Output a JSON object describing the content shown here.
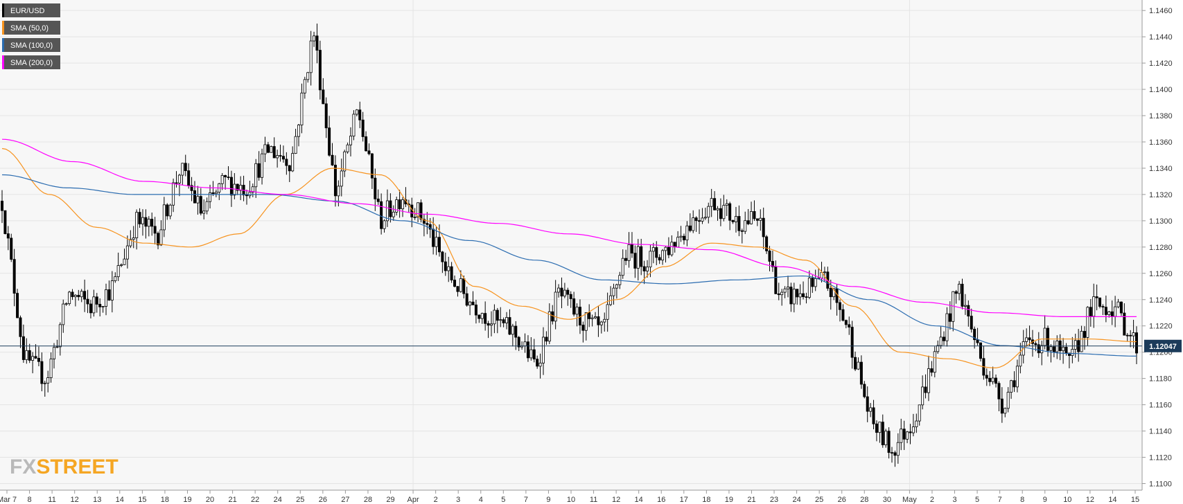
{
  "chart_data": {
    "type": "candlestick",
    "title": "",
    "xlabel": "",
    "ylabel": "",
    "ylim": [
      1.1095,
      1.1468
    ],
    "y_ticks": [
      "1.1100",
      "1.1120",
      "1.1140",
      "1.1160",
      "1.1180",
      "1.1200",
      "1.1220",
      "1.1240",
      "1.1260",
      "1.1280",
      "1.1300",
      "1.1320",
      "1.1340",
      "1.1360",
      "1.1380",
      "1.1400",
      "1.1420",
      "1.1440",
      "1.1460"
    ],
    "x_tick_labels": [
      "Mar 7",
      "8",
      "11",
      "12",
      "13",
      "14",
      "15",
      "18",
      "19",
      "20",
      "21",
      "22",
      "24",
      "25",
      "26",
      "27",
      "28",
      "29",
      "Apr",
      "2",
      "3",
      "4",
      "5",
      "7",
      "9",
      "10",
      "11",
      "12",
      "14",
      "16",
      "17",
      "18",
      "19",
      "21",
      "23",
      "24",
      "25",
      "26",
      "28",
      "30",
      "May",
      "2",
      "3",
      "5",
      "7",
      "8",
      "9",
      "10",
      "12",
      "14",
      "15"
    ],
    "series": [
      {
        "name": "EUR/USD",
        "kind": "candles",
        "color_up": "#ffffff",
        "color_down": "#000000",
        "anchors": [
          1.1315,
          1.1195,
          1.118,
          1.1245,
          1.1235,
          1.125,
          1.13,
          1.129,
          1.134,
          1.1305,
          1.133,
          1.1325,
          1.1355,
          1.1345,
          1.1445,
          1.132,
          1.1385,
          1.13,
          1.132,
          1.13,
          1.126,
          1.124,
          1.1225,
          1.1215,
          1.119,
          1.1245,
          1.1225,
          1.1215,
          1.1275,
          1.127,
          1.128,
          1.13,
          1.1315,
          1.13,
          1.13,
          1.124,
          1.1245,
          1.1255,
          1.122,
          1.115,
          1.1125,
          1.115,
          1.12,
          1.125,
          1.1195,
          1.116,
          1.1205,
          1.121,
          1.119,
          1.1235,
          1.1235,
          1.1205
        ]
      },
      {
        "name": "SMA (50,0)",
        "kind": "line",
        "color": "#f7931e",
        "values": [
          1.1355,
          1.132,
          1.1295,
          1.1283,
          1.128,
          1.129,
          1.132,
          1.134,
          1.1335,
          1.13,
          1.125,
          1.1235,
          1.1225,
          1.124,
          1.1265,
          1.1283,
          1.128,
          1.127,
          1.1235,
          1.12,
          1.1195,
          1.1188,
          1.121,
          1.121,
          1.1208
        ]
      },
      {
        "name": "SMA (100,0)",
        "kind": "line",
        "color": "#2b6cb0",
        "values": [
          1.1335,
          1.1325,
          1.132,
          1.132,
          1.132,
          1.1315,
          1.13,
          1.1285,
          1.127,
          1.1255,
          1.1252,
          1.1255,
          1.1258,
          1.124,
          1.122,
          1.1205,
          1.1199,
          1.1197
        ]
      },
      {
        "name": "SMA (200,0)",
        "kind": "line",
        "color": "#ff00ff",
        "values": [
          1.1362,
          1.1345,
          1.133,
          1.1325,
          1.132,
          1.1313,
          1.1305,
          1.1298,
          1.129,
          1.1282,
          1.1278,
          1.1265,
          1.125,
          1.1238,
          1.123,
          1.1227,
          1.1227
        ]
      }
    ],
    "current_price": "1.12047",
    "grid": true,
    "legend_position": "top-left"
  },
  "legend": [
    {
      "label": "EUR/USD",
      "swatch": "#000000"
    },
    {
      "label": "SMA (50,0)",
      "swatch": "#f7931e"
    },
    {
      "label": "SMA (100,0)",
      "swatch": "#2b6cb0"
    },
    {
      "label": "SMA (200,0)",
      "swatch": "#ff00ff"
    }
  ],
  "watermark": {
    "part1": "FX",
    "part2": "STREET",
    "color1": "#b9b9b9",
    "color2": "#f5a623"
  },
  "colors": {
    "plot_bg": "#f7f7f7",
    "grid": "#e4e4e4",
    "price_line": "#1c3b5a",
    "price_tag_bg": "#1c3b5a"
  }
}
